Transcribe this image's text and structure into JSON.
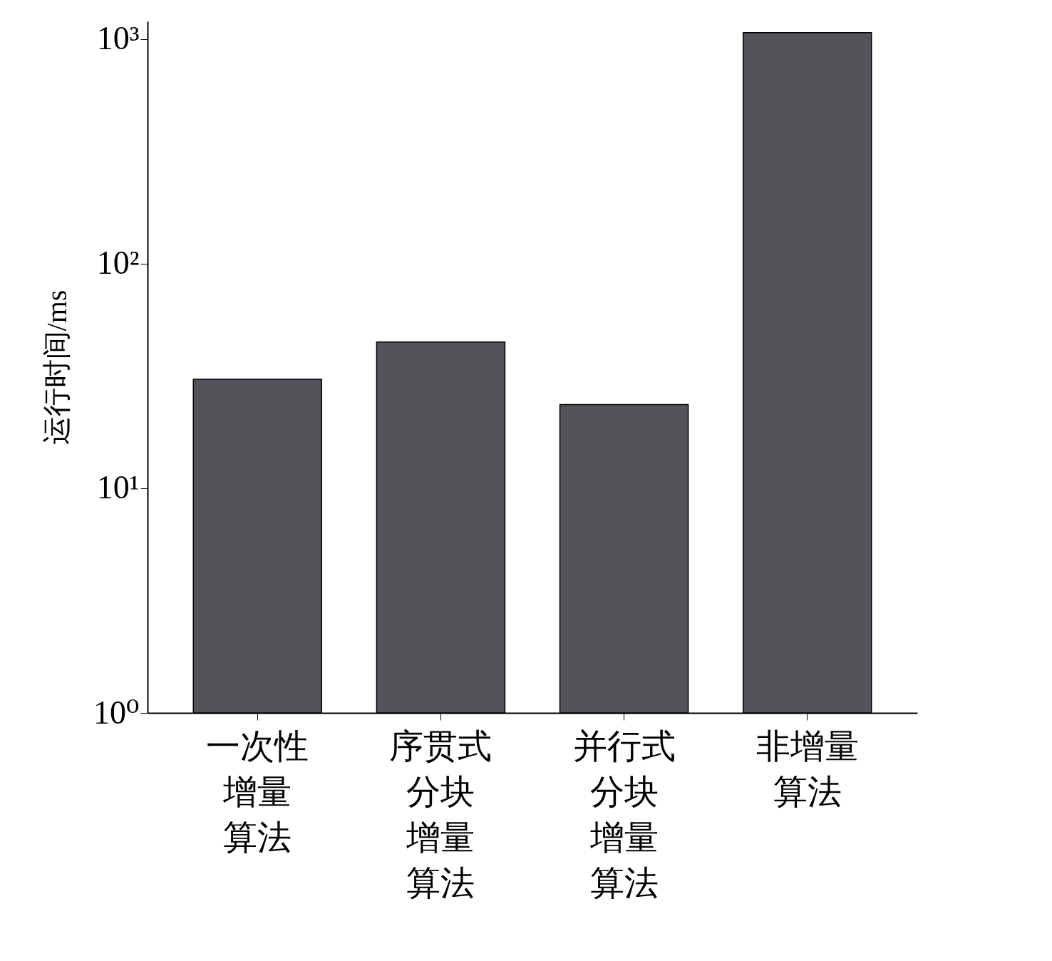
{
  "chart_data": {
    "type": "bar",
    "ylabel": "运行时间/ms",
    "categories": [
      "一次性增量算法",
      "序贯式分块增量算法",
      "并行式分块增量算法",
      "非增量算法"
    ],
    "values": [
      30.6,
      44.8,
      23.6,
      1070
    ],
    "color": "#53545a",
    "log": true,
    "ylim": [
      1,
      1200
    ],
    "yticks": [
      {
        "value": 1,
        "label": "10⁰"
      },
      {
        "value": 10,
        "label": "10¹"
      },
      {
        "value": 100,
        "label": "10²"
      },
      {
        "value": 1000,
        "label": "10³"
      }
    ],
    "grid": false
  }
}
